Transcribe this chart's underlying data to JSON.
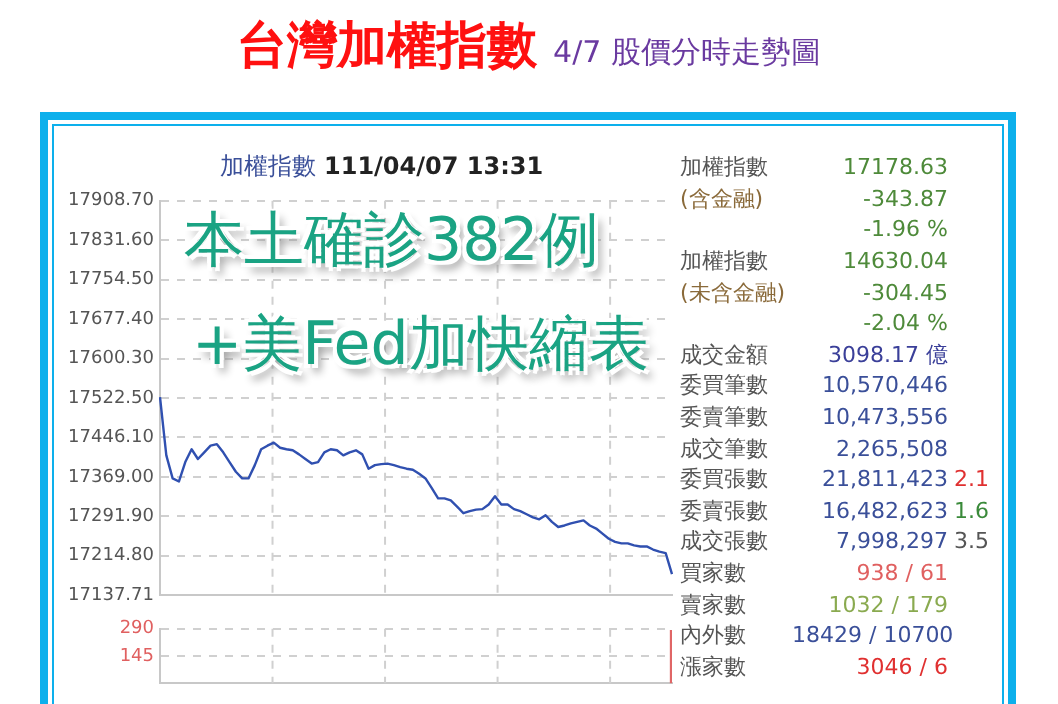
{
  "chart_data": [
    {
      "type": "line",
      "title": "台灣加權指數",
      "subtitle": "4/7 股價分時走勢圖",
      "annotations": [
        "加權指數",
        "111/04/07 13:31",
        "本土確診382例",
        "+美Fed加快縮表"
      ],
      "categories": [
        null,
        null,
        null,
        null,
        null,
        null,
        null,
        null,
        null,
        null,
        null,
        null,
        null,
        null,
        null,
        null,
        null,
        null,
        null,
        null,
        null,
        null,
        null,
        null,
        null,
        null,
        null,
        null,
        null,
        null,
        null,
        null,
        null,
        null,
        null,
        null,
        null,
        null,
        null,
        null,
        null,
        null,
        null,
        null,
        null,
        null,
        null,
        null,
        null,
        null,
        null,
        null,
        null,
        null,
        null,
        null,
        null,
        null,
        null,
        null,
        null,
        null,
        null,
        null,
        null,
        null,
        null,
        null,
        null,
        null,
        null,
        null,
        null,
        null,
        null,
        null,
        null,
        null,
        null,
        null,
        null,
        null
      ],
      "series": [
        {
          "color": "#3050b0",
          "values": [
            17525,
            17411,
            17366,
            17360,
            17398,
            17423,
            17404,
            17417,
            17430,
            17433,
            17417,
            17398,
            17379,
            17366,
            17366,
            17392,
            17423,
            17430,
            17436,
            17426,
            17423,
            17421,
            17413,
            17404,
            17395,
            17398,
            17417,
            17423,
            17421,
            17411,
            17417,
            17421,
            17413,
            17385,
            17392,
            17394,
            17395,
            17392,
            17388,
            17385,
            17383,
            17375,
            17366,
            17347,
            17327,
            17327,
            17323,
            17311,
            17298,
            17302,
            17305,
            17306,
            17315,
            17331,
            17315,
            17315,
            17306,
            17302,
            17296,
            17290,
            17286,
            17294,
            17281,
            17271,
            17274,
            17278,
            17281,
            17284,
            17274,
            17268,
            17258,
            17248,
            17242,
            17239,
            17239,
            17235,
            17233,
            17233,
            17227,
            17223,
            17220,
            17179
          ]
        }
      ],
      "ylim": [
        17137.71,
        17908.7
      ],
      "yticks": [
        {
          "value": 17137.71,
          "label": "17137.71"
        },
        {
          "value": 17214.8,
          "label": "17214.80"
        },
        {
          "value": 17291.9,
          "label": "17291.90"
        },
        {
          "value": 17369,
          "label": "17369.00"
        },
        {
          "value": 17446.1,
          "label": "17446.10"
        },
        {
          "value": 17522.5,
          "label": "17522.50"
        },
        {
          "value": 17600.3,
          "label": "17600.30"
        },
        {
          "value": 17677.4,
          "label": "17677.40"
        },
        {
          "value": 17754.5,
          "label": "17754.50"
        },
        {
          "value": 17831.6,
          "label": "17831.60"
        },
        {
          "value": 17908.7,
          "label": "17908.70"
        }
      ],
      "grid": true,
      "tick_labels": "y",
      "marker": "none",
      "line_style": "solid",
      "legend": false
    },
    {
      "type": "bar",
      "categories": [
        null,
        null,
        null,
        null,
        null,
        null,
        null,
        null,
        null,
        null,
        null,
        null,
        null,
        null,
        null,
        null,
        null,
        null,
        null,
        null,
        null,
        null,
        null,
        null,
        null,
        null,
        null,
        null,
        null,
        null,
        null,
        null,
        null,
        null,
        null,
        null,
        null,
        null,
        null,
        null,
        null,
        null,
        null,
        null,
        null,
        null,
        null,
        null,
        null,
        null,
        null,
        null,
        null,
        null,
        null,
        null,
        null,
        null,
        null,
        null,
        null,
        null,
        null,
        null,
        null,
        null,
        null,
        null,
        null,
        null,
        null,
        null,
        null,
        null,
        null,
        null,
        null,
        null,
        null,
        null,
        null,
        null
      ],
      "values": [
        null,
        null,
        null,
        null,
        null,
        null,
        null,
        null,
        null,
        null,
        null,
        null,
        null,
        null,
        null,
        null,
        null,
        null,
        null,
        null,
        null,
        null,
        null,
        null,
        null,
        null,
        null,
        null,
        null,
        null,
        null,
        null,
        null,
        null,
        null,
        null,
        null,
        null,
        null,
        null,
        null,
        null,
        null,
        null,
        null,
        null,
        null,
        null,
        null,
        null,
        null,
        null,
        null,
        null,
        null,
        null,
        null,
        null,
        null,
        null,
        null,
        null,
        null,
        null,
        null,
        null,
        null,
        null,
        null,
        null,
        null,
        null,
        null,
        null,
        null,
        null,
        null,
        null,
        null,
        null,
        null,
        280
      ],
      "color": "#e06666",
      "ylim": [
        0,
        290
      ],
      "yticks": [
        145,
        290
      ],
      "grid": true,
      "tick_labels": "y",
      "legend": false
    },
    {
      "type": "other",
      "annotations": [
        "加權指數",
        "17178.63",
        "(含金融)",
        "-343.87",
        "-1.96 %",
        "加權指數",
        "14630.04",
        "(未含金融)",
        "-304.45",
        "-2.04 %",
        "成交金額",
        "3098.17 億",
        "委買筆數",
        "10,570,446",
        "委賣筆數",
        "10,473,556",
        "成交筆數",
        "2,265,508",
        "委買張數",
        "21,811,423",
        "2.1",
        "委賣張數",
        "16,482,623",
        "1.6",
        "成交張數",
        "7,998,297",
        "3.5",
        "買家數",
        "938 / 61",
        "賣家數",
        "1032 / 179",
        "內外數",
        "18429 / 10700",
        "漲家數",
        "3046 / 6"
      ]
    }
  ]
}
